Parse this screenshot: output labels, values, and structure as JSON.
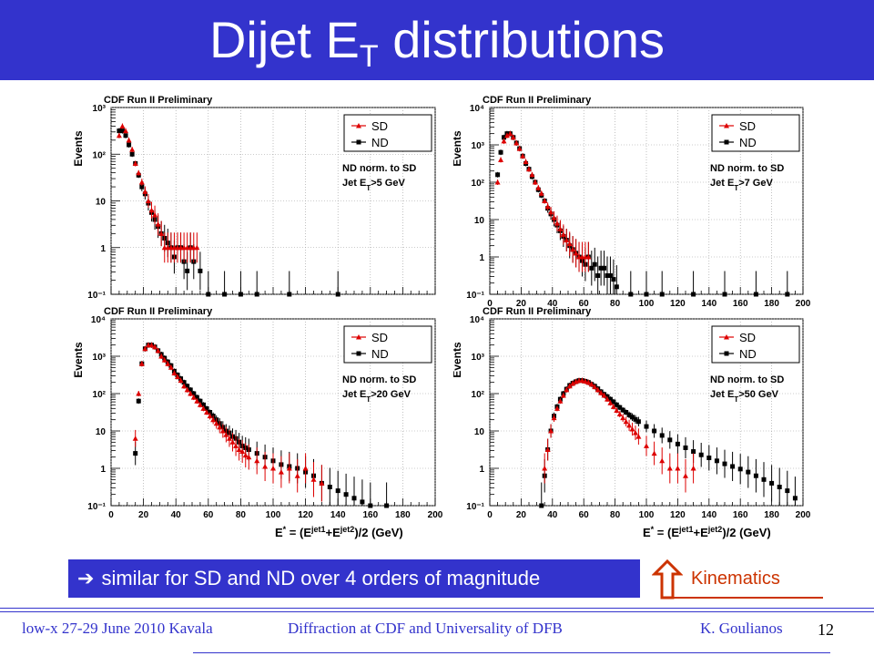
{
  "slide": {
    "title_main": "Dijet E",
    "title_sub": "T",
    "title_rest": " distributions",
    "callout_text": "similar for SD and ND over 4 orders of magnitude",
    "kinematics_label": "Kinematics",
    "footer": {
      "left": "low-x 27-29 June 2010 Kavala",
      "center": "Diffraction at CDF and Universality of DFB",
      "right": "K. Goulianos",
      "page": "12"
    },
    "colors": {
      "accent": "#3333cc",
      "sd": "#dd0000",
      "nd": "#000000",
      "kinematics": "#cc3300"
    }
  },
  "chart_data": [
    {
      "type": "scatter",
      "header": "CDF Run II Preliminary",
      "ylabel": "Events",
      "xlabel": "",
      "xlim": [
        0,
        200
      ],
      "ylim_exp": [
        -1,
        3
      ],
      "y_tick_labels": [
        "10³",
        "10²",
        "10",
        "1",
        "10⁻¹"
      ],
      "x_tick_labels": [],
      "legend": [
        "SD",
        "ND"
      ],
      "note1": "ND norm. to SD",
      "note2": "Jet E",
      "note2_sub": "T",
      "note2_rest": ">5 GeV",
      "series": [
        {
          "name": "SD",
          "x": [
            5,
            7,
            9,
            11,
            13,
            15,
            17,
            19,
            21,
            23,
            25,
            27,
            29,
            31,
            33,
            35,
            37,
            39,
            41,
            43,
            45,
            47,
            49,
            51,
            53
          ],
          "log10y": [
            2.4,
            2.6,
            2.5,
            2.3,
            2.1,
            1.8,
            1.6,
            1.4,
            1.2,
            1.0,
            0.8,
            0.7,
            0.5,
            0.3,
            0.0,
            0.0,
            0.0,
            0.0,
            0.0,
            0.0,
            0.0,
            0.0,
            0.0,
            0.0,
            0.0
          ]
        },
        {
          "name": "ND",
          "x": [
            5,
            7,
            9,
            11,
            13,
            15,
            17,
            19,
            21,
            23,
            25,
            27,
            29,
            31,
            33,
            35,
            37,
            39,
            41,
            43,
            45,
            47,
            49,
            51,
            55,
            60,
            70,
            80,
            90,
            110,
            140
          ],
          "log10y": [
            2.5,
            2.5,
            2.4,
            2.2,
            2.0,
            1.8,
            1.55,
            1.3,
            1.15,
            0.95,
            0.75,
            0.6,
            0.45,
            0.3,
            0.2,
            0.1,
            0.0,
            -0.2,
            0.0,
            0.0,
            -0.3,
            -0.5,
            0.0,
            -0.3,
            -0.5,
            -1.0,
            -1.0,
            -1.0,
            -1.0,
            -1.0,
            -1.0
          ]
        }
      ]
    },
    {
      "type": "scatter",
      "header": "CDF Run II Preliminary",
      "ylabel": "Events",
      "xlabel": "",
      "xlim": [
        0,
        200
      ],
      "ylim_exp": [
        -1,
        4
      ],
      "y_tick_labels": [
        "10⁴",
        "10³",
        "10²",
        "10",
        "1",
        "10⁻¹"
      ],
      "x_tick_labels": [
        "0",
        "20",
        "40",
        "60",
        "80",
        "100",
        "120",
        "140",
        "160",
        "180",
        "200"
      ],
      "legend": [
        "SD",
        "ND"
      ],
      "note1": "ND norm. to SD",
      "note2": "Jet E",
      "note2_sub": "T",
      "note2_rest": ">7 GeV",
      "series": [
        {
          "name": "SD",
          "x": [
            5,
            7,
            9,
            11,
            13,
            15,
            17,
            19,
            21,
            23,
            25,
            27,
            29,
            31,
            33,
            35,
            37,
            39,
            41,
            43,
            45,
            47,
            49,
            51,
            53,
            55,
            57,
            59,
            61,
            63
          ],
          "log10y": [
            2.0,
            2.6,
            3.1,
            3.25,
            3.3,
            3.2,
            3.05,
            2.9,
            2.7,
            2.55,
            2.35,
            2.2,
            2.0,
            1.85,
            1.7,
            1.5,
            1.35,
            1.2,
            1.05,
            0.9,
            0.75,
            0.6,
            0.45,
            0.35,
            0.2,
            0.1,
            0.0,
            0.0,
            0.0,
            0.0
          ]
        },
        {
          "name": "ND",
          "x": [
            5,
            7,
            9,
            11,
            13,
            15,
            17,
            19,
            21,
            23,
            25,
            27,
            29,
            31,
            33,
            35,
            37,
            39,
            41,
            43,
            45,
            47,
            49,
            51,
            53,
            55,
            57,
            59,
            61,
            63,
            65,
            67,
            69,
            71,
            73,
            75,
            77,
            79,
            81,
            90,
            100,
            110,
            130,
            150,
            170,
            190
          ],
          "log10y": [
            2.2,
            2.8,
            3.2,
            3.3,
            3.3,
            3.2,
            3.05,
            2.9,
            2.7,
            2.5,
            2.35,
            2.15,
            2.0,
            1.8,
            1.65,
            1.5,
            1.3,
            1.15,
            1.0,
            0.85,
            0.7,
            0.55,
            0.45,
            0.3,
            0.2,
            0.1,
            0.0,
            -0.1,
            -0.2,
            0.0,
            -0.3,
            -0.2,
            -0.5,
            -0.3,
            -0.3,
            -0.5,
            -0.5,
            -0.6,
            -0.8,
            -1.0,
            -1.0,
            -1.0,
            -1.0,
            -1.0,
            -1.0,
            -1.0
          ]
        }
      ]
    },
    {
      "type": "scatter",
      "header": "CDF Run II Preliminary",
      "ylabel": "Events",
      "xlabel": "E",
      "xlabel_sup": "*",
      "xlabel_rest": " = (E",
      "xlabel_jet1": "jet1",
      "xlabel_mid": "+E",
      "xlabel_jet2": "jet2",
      "xlabel_end": ")/2 (GeV)",
      "xlim": [
        0,
        200
      ],
      "ylim_exp": [
        -1,
        4
      ],
      "y_tick_labels": [
        "10⁴",
        "10³",
        "10²",
        "10",
        "1",
        "10⁻¹"
      ],
      "x_tick_labels": [
        "0",
        "20",
        "40",
        "60",
        "80",
        "100",
        "120",
        "140",
        "160",
        "180",
        "200"
      ],
      "legend": [
        "SD",
        "ND"
      ],
      "note1": "ND norm. to SD",
      "note2": "Jet E",
      "note2_sub": "T",
      "note2_rest": ">20 GeV",
      "series": [
        {
          "name": "SD",
          "x": [
            15,
            17,
            19,
            21,
            23,
            25,
            27,
            29,
            31,
            33,
            35,
            37,
            39,
            41,
            43,
            45,
            47,
            49,
            51,
            53,
            55,
            57,
            59,
            61,
            63,
            65,
            67,
            69,
            71,
            73,
            75,
            77,
            79,
            81,
            83,
            85,
            90,
            95,
            100,
            105,
            110,
            115,
            120,
            125,
            130
          ],
          "log10y": [
            0.8,
            2.0,
            2.8,
            3.2,
            3.3,
            3.3,
            3.25,
            3.15,
            3.0,
            2.9,
            2.8,
            2.7,
            2.55,
            2.45,
            2.35,
            2.2,
            2.1,
            2.0,
            1.9,
            1.8,
            1.7,
            1.6,
            1.5,
            1.4,
            1.3,
            1.2,
            1.1,
            1.0,
            0.9,
            0.8,
            0.7,
            0.6,
            0.5,
            0.45,
            0.35,
            0.3,
            0.2,
            0.05,
            0.0,
            -0.1,
            0.0,
            -0.2,
            0.0,
            -0.3,
            -0.4
          ]
        },
        {
          "name": "ND",
          "x": [
            15,
            17,
            19,
            21,
            23,
            25,
            27,
            29,
            31,
            33,
            35,
            37,
            39,
            41,
            43,
            45,
            47,
            49,
            51,
            53,
            55,
            57,
            59,
            61,
            63,
            65,
            67,
            69,
            71,
            73,
            75,
            77,
            79,
            81,
            83,
            85,
            90,
            95,
            100,
            105,
            110,
            115,
            120,
            125,
            130,
            135,
            140,
            145,
            150,
            155,
            160,
            170
          ],
          "log10y": [
            0.4,
            1.8,
            2.8,
            3.2,
            3.3,
            3.3,
            3.25,
            3.15,
            3.05,
            2.95,
            2.85,
            2.75,
            2.6,
            2.5,
            2.4,
            2.3,
            2.2,
            2.1,
            2.0,
            1.9,
            1.8,
            1.7,
            1.6,
            1.5,
            1.4,
            1.3,
            1.2,
            1.1,
            1.0,
            0.95,
            0.85,
            0.8,
            0.7,
            0.6,
            0.55,
            0.5,
            0.4,
            0.3,
            0.2,
            0.1,
            0.05,
            0.0,
            -0.1,
            -0.2,
            -0.4,
            -0.5,
            -0.6,
            -0.7,
            -0.8,
            -0.9,
            -1.0,
            -1.0
          ]
        }
      ]
    },
    {
      "type": "scatter",
      "header": "CDF Run II Preliminary",
      "ylabel": "Events",
      "xlabel": "E",
      "xlabel_sup": "*",
      "xlabel_rest": " = (E",
      "xlabel_jet1": "jet1",
      "xlabel_mid": "+E",
      "xlabel_jet2": "jet2",
      "xlabel_end": ")/2 (GeV)",
      "xlim": [
        0,
        200
      ],
      "ylim_exp": [
        -1,
        4
      ],
      "y_tick_labels": [
        "10⁴",
        "10³",
        "10²",
        "10",
        "1",
        "10⁻¹"
      ],
      "x_tick_labels": [
        "0",
        "20",
        "40",
        "60",
        "80",
        "100",
        "120",
        "140",
        "160",
        "180",
        "200"
      ],
      "legend": [
        "SD",
        "ND"
      ],
      "note1": "ND norm. to SD",
      "note2": "Jet E",
      "note2_sub": "T",
      "note2_rest": ">50 GeV",
      "series": [
        {
          "name": "SD",
          "x": [
            35,
            37,
            39,
            41,
            43,
            45,
            47,
            49,
            51,
            53,
            55,
            57,
            59,
            61,
            63,
            65,
            67,
            69,
            71,
            73,
            75,
            77,
            79,
            81,
            83,
            85,
            87,
            89,
            91,
            93,
            95,
            100,
            105,
            110,
            115,
            120,
            125,
            130
          ],
          "log10y": [
            0.0,
            0.5,
            1.0,
            1.35,
            1.6,
            1.8,
            1.95,
            2.1,
            2.2,
            2.27,
            2.32,
            2.35,
            2.35,
            2.33,
            2.3,
            2.25,
            2.18,
            2.1,
            2.02,
            1.95,
            1.85,
            1.75,
            1.65,
            1.55,
            1.45,
            1.35,
            1.25,
            1.15,
            1.05,
            0.95,
            0.85,
            0.6,
            0.4,
            0.2,
            0.0,
            0.0,
            -0.2,
            0.0
          ]
        },
        {
          "name": "ND",
          "x": [
            33,
            35,
            37,
            39,
            41,
            43,
            45,
            47,
            49,
            51,
            53,
            55,
            57,
            59,
            61,
            63,
            65,
            67,
            69,
            71,
            73,
            75,
            77,
            79,
            81,
            83,
            85,
            87,
            89,
            91,
            93,
            95,
            100,
            105,
            110,
            115,
            120,
            125,
            130,
            135,
            140,
            145,
            150,
            155,
            160,
            165,
            170,
            175,
            180,
            185,
            190,
            195
          ],
          "log10y": [
            -1.0,
            -0.2,
            0.5,
            1.0,
            1.4,
            1.65,
            1.85,
            2.0,
            2.12,
            2.22,
            2.28,
            2.32,
            2.35,
            2.35,
            2.33,
            2.3,
            2.25,
            2.2,
            2.13,
            2.05,
            1.98,
            1.92,
            1.85,
            1.78,
            1.7,
            1.63,
            1.56,
            1.5,
            1.43,
            1.37,
            1.31,
            1.25,
            1.12,
            1.0,
            0.88,
            0.76,
            0.65,
            0.55,
            0.45,
            0.36,
            0.28,
            0.2,
            0.12,
            0.05,
            -0.02,
            -0.1,
            -0.2,
            -0.3,
            -0.4,
            -0.5,
            -0.6,
            -0.8
          ]
        }
      ]
    }
  ]
}
